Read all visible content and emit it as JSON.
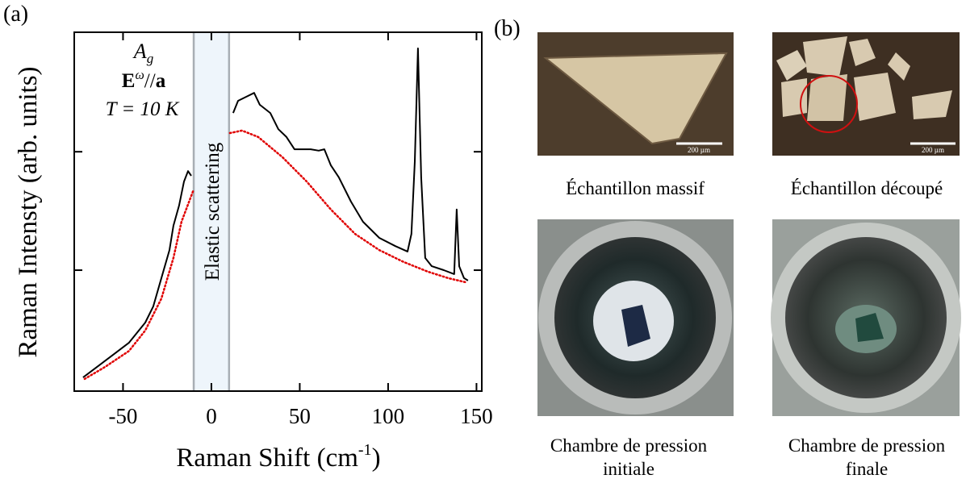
{
  "panels": {
    "a": "(a)",
    "b": "(b)"
  },
  "chart_data": {
    "type": "line",
    "ylabel": "Raman Intensty (arb. units)",
    "xlabel": {
      "text": "Raman Shift (cm",
      "superscript": "-1",
      "close": ")"
    },
    "xlim": [
      -77.6,
      153
    ],
    "ylim": [
      0,
      100
    ],
    "xticks": [
      -50,
      0,
      50,
      100,
      150
    ],
    "yticks": [
      33.7,
      66.7
    ],
    "annotations": {
      "symmetry": {
        "base": "A",
        "sub": "g"
      },
      "polarization": {
        "base": "E",
        "sup": "ω",
        "sep": "//",
        "vec": "a"
      },
      "temperature": "T = 10 K",
      "elastic": "Elastic scattering"
    },
    "elastic_band": [
      -10,
      10
    ],
    "series": [
      {
        "color": "#000000",
        "style": "solid",
        "x": [
          -72.6,
          -64.8,
          -55.7,
          -46.6,
          -37.4,
          -32.9,
          -28.3,
          -23.7,
          -21.5,
          -18.3,
          -15.5,
          -13.2,
          -11.4,
          null,
          12.3,
          15.1,
          19.6,
          24.2,
          27.4,
          33.3,
          37.9,
          42.5,
          47.0,
          51.6,
          56.2,
          60.7,
          63.9,
          67.6,
          72.1,
          79.0,
          85.8,
          95.0,
          104.1,
          111.0,
          113.2,
          115.1,
          116.9,
          118.7,
          121.0,
          124.7,
          131.5,
          137.4,
          138.8,
          140.2,
          142.9,
          145.2
        ],
        "values": [
          3.8,
          6.7,
          10.1,
          13.5,
          19.1,
          23.6,
          31.5,
          39.3,
          46.1,
          51.7,
          58.4,
          61.3,
          60.0,
          null,
          77.5,
          80.9,
          82.0,
          83.1,
          79.8,
          77.5,
          73.0,
          70.8,
          67.4,
          67.4,
          67.4,
          67.0,
          67.4,
          62.9,
          59.6,
          52.8,
          47.2,
          42.7,
          40.4,
          38.9,
          43.8,
          64.0,
          95.5,
          59.6,
          37.1,
          34.8,
          33.7,
          32.6,
          50.6,
          34.8,
          31.5,
          30.8
        ]
      },
      {
        "color": "#e00000",
        "style": "dotted",
        "x": [
          -71.7,
          -60.3,
          -46.6,
          -37.4,
          -28.3,
          -21.5,
          -16.9,
          -10.0,
          null,
          10.5,
          17.4,
          26.5,
          40.2,
          53.9,
          67.6,
          81.3,
          95.0,
          108.7,
          122.4,
          133.8,
          144.3
        ],
        "values": [
          3.4,
          6.7,
          11.2,
          16.9,
          25.8,
          37.1,
          47.2,
          56.2,
          null,
          71.9,
          72.6,
          70.8,
          65.2,
          58.4,
          50.6,
          43.8,
          39.3,
          36.0,
          33.3,
          31.5,
          30.3
        ]
      }
    ]
  },
  "photos": [
    {
      "caption": [
        "Échantillon massif"
      ],
      "scale_bar": "200 µm"
    },
    {
      "caption": [
        "Échantillon découpé"
      ],
      "scale_bar": "200 µm"
    },
    {
      "caption": [
        "Chambre de pression",
        "initiale"
      ]
    },
    {
      "caption": [
        "Chambre de pression",
        "finale"
      ]
    }
  ]
}
